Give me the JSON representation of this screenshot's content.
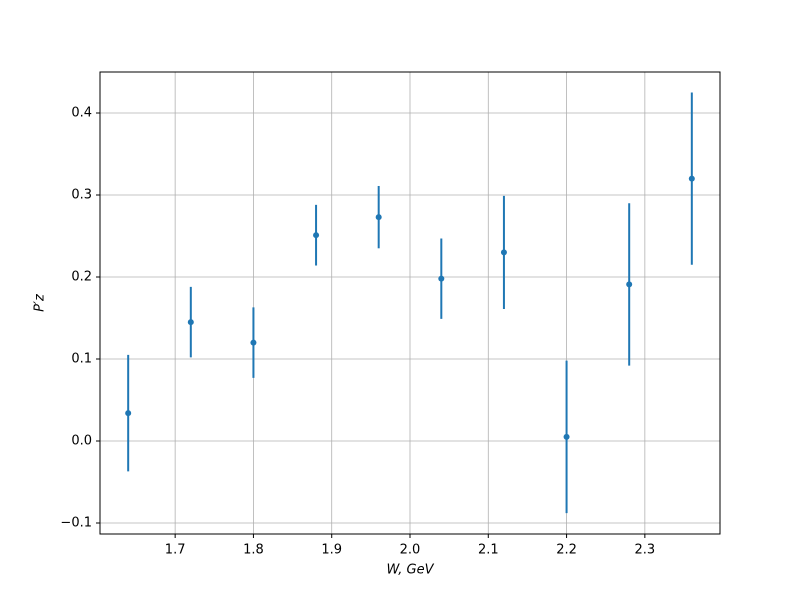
{
  "chart_data": {
    "type": "errorbar",
    "xlabel": "W, GeV",
    "ylabel": "P′z",
    "x": [
      1.64,
      1.72,
      1.8,
      1.88,
      1.96,
      2.04,
      2.12,
      2.2,
      2.28,
      2.36
    ],
    "series": [
      {
        "color": "#1f77b4",
        "values": [
          0.034,
          0.145,
          0.12,
          0.251,
          0.273,
          0.198,
          0.23,
          0.005,
          0.191,
          0.32
        ],
        "errors": [
          0.071,
          0.043,
          0.043,
          0.037,
          0.038,
          0.049,
          0.069,
          0.093,
          0.099,
          0.105
        ]
      }
    ],
    "xlim": [
      1.604,
      2.396
    ],
    "ylim": [
      -0.1134,
      0.45
    ],
    "xticks": [
      1.7,
      1.8,
      1.9,
      {
        "value": 2.0,
        "label": "2.0"
      },
      2.1,
      2.2,
      2.3
    ],
    "yticks": [
      {
        "value": -0.1,
        "label": "−0.1"
      },
      {
        "value": 0.0,
        "label": "0.0"
      },
      0.1,
      0.2,
      0.3,
      0.4
    ],
    "grid": true
  }
}
